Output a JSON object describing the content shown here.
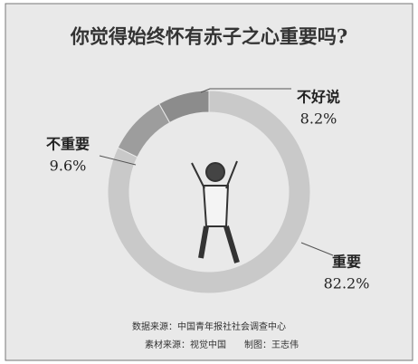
{
  "chart_data": {
    "type": "donut",
    "title": "你觉得始终怀有赤子之心重要吗?",
    "categories": [
      "重要",
      "不重要",
      "不好说"
    ],
    "values": [
      82.2,
      9.6,
      8.2
    ],
    "value_labels": [
      "82.2%",
      "9.6%",
      "8.2%"
    ],
    "colors": [
      "#c9c9c9",
      "#9d9d9d",
      "#8c8c8c"
    ],
    "notes": [
      "数据来源：中国青年报社社会调查中心",
      "素材来源：视觉中国",
      "制图：王志伟"
    ]
  }
}
